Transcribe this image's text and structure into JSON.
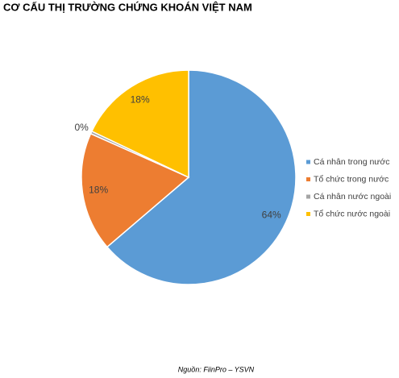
{
  "chart_data": {
    "type": "pie",
    "title": "CƠ CẤU THỊ TRƯỜNG CHỨNG KHOÁN VIỆT NAM",
    "categories": [
      "Cá nhân trong nước",
      "Tổ chức trong nước",
      "Cá nhân nước ngoài",
      "Tổ chức nước ngoài"
    ],
    "values": [
      64,
      18,
      0.4,
      18
    ],
    "value_labels": [
      "64%",
      "18%",
      "0%",
      "18%"
    ],
    "colors": [
      "#5b9bd5",
      "#ed7d31",
      "#a5a5a5",
      "#ffc000"
    ],
    "legend": "right",
    "source": "Nguồn: FiinPro – YSVN"
  }
}
